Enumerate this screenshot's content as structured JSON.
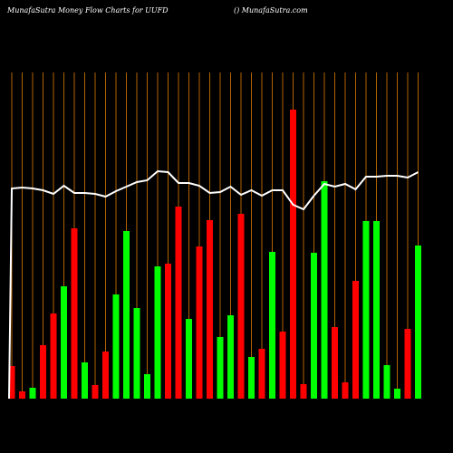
{
  "chart_data": {
    "type": "bar",
    "title": "MunafaSutra  Money Flow  Charts for UUFD",
    "subtitle": "() MunafaSutra.com",
    "ylim": [
      0,
      360
    ],
    "values": [
      36,
      8,
      12,
      59,
      94,
      124,
      188,
      40,
      15,
      52,
      115,
      185,
      100,
      27,
      146,
      149,
      212,
      88,
      168,
      197,
      68,
      92,
      204,
      46,
      55,
      162,
      74,
      319,
      16,
      161,
      240,
      79,
      18,
      130,
      196,
      196,
      37,
      11,
      77,
      169
    ],
    "colors": [
      "red",
      "red",
      "lime",
      "red",
      "red",
      "lime",
      "red",
      "lime",
      "red",
      "red",
      "lime",
      "lime",
      "lime",
      "lime",
      "lime",
      "red",
      "red",
      "lime",
      "red",
      "red",
      "lime",
      "lime",
      "red",
      "lime",
      "red",
      "lime",
      "red",
      "red",
      "red",
      "lime",
      "lime",
      "red",
      "red",
      "red",
      "lime",
      "lime",
      "lime",
      "lime",
      "red",
      "lime"
    ],
    "line_values": [
      232,
      233,
      232,
      230,
      226,
      235,
      227,
      227,
      226,
      223,
      229,
      234,
      239,
      241,
      251,
      250,
      238,
      238,
      235,
      227,
      228,
      234,
      225,
      230,
      224,
      230,
      230,
      214,
      209,
      224,
      237,
      234,
      237,
      231,
      245,
      245,
      246,
      246,
      244,
      250
    ],
    "line_color": "white",
    "gridline_color": "#b36200"
  }
}
